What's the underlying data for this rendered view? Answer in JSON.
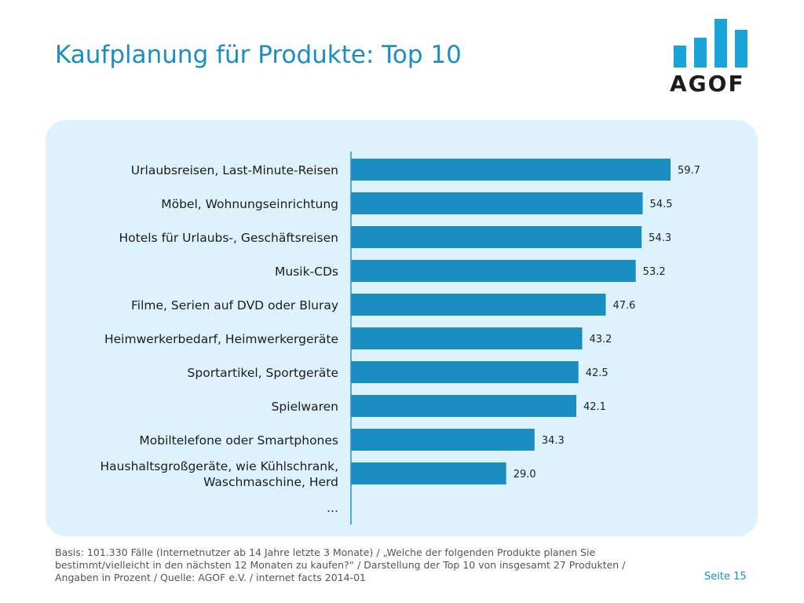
{
  "header": {
    "title": "Kaufplanung für Produkte: Top 10"
  },
  "logo": {
    "text": "AGOF",
    "color": "#1aa3d6"
  },
  "chart_data": {
    "type": "bar",
    "orientation": "horizontal",
    "title": "",
    "xlabel": "",
    "ylabel": "",
    "xlim": [
      0,
      65
    ],
    "grid": false,
    "bar_color": "#1a8dc3",
    "categories": [
      "Urlaubsreisen, Last-Minute-Reisen",
      "Möbel, Wohnungseinrichtung",
      "Hotels für Urlaubs-, Geschäftsreisen",
      "Musik-CDs",
      "Filme, Serien auf DVD oder Bluray",
      "Heimwerkerbedarf, Heimwerkergeräte",
      "Sportartikel, Sportgeräte",
      "Spielwaren",
      "Mobiltelefone oder Smartphones",
      "Haushaltsgroßgeräte, wie Kühlschrank, Waschmaschine, Herd"
    ],
    "category_lines": [
      [
        "Urlaubsreisen, Last-Minute-Reisen"
      ],
      [
        "Möbel, Wohnungseinrichtung"
      ],
      [
        "Hotels für Urlaubs-, Geschäftsreisen"
      ],
      [
        "Musik-CDs"
      ],
      [
        "Filme, Serien auf DVD oder Bluray"
      ],
      [
        "Heimwerkerbedarf, Heimwerkergeräte"
      ],
      [
        "Sportartikel, Sportgeräte"
      ],
      [
        "Spielwaren"
      ],
      [
        "Mobiltelefone oder Smartphones"
      ],
      [
        "Haushaltsgroßgeräte, wie Kühlschrank,",
        "Waschmaschine, Herd"
      ]
    ],
    "values": [
      59.7,
      54.5,
      54.3,
      53.2,
      47.6,
      43.2,
      42.5,
      42.1,
      34.3,
      29.0
    ],
    "value_labels": [
      "59.7",
      "54.5",
      "54.3",
      "53.2",
      "47.6",
      "43.2",
      "42.5",
      "42.1",
      "34.3",
      "29.0"
    ],
    "trailing_label": "…"
  },
  "footer": {
    "note": "Basis: 101.330 Fälle (Internetnutzer ab 14 Jahre letzte 3 Monate) / „Welche der folgenden Produkte planen Sie bestimmt/vielleicht in den nächsten 12 Monaten zu kaufen?“ / Darstellung der Top 10 von insgesamt 27 Produkten / Angaben in Prozent / Quelle: AGOF e.V. / internet facts 2014-01",
    "page": "Seite 15"
  }
}
